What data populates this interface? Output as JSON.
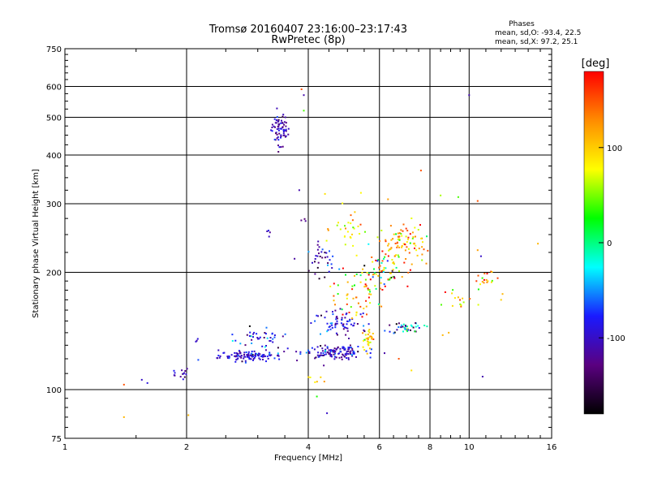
{
  "chart_data": {
    "type": "scatter",
    "title": "Tromsø 20160407 23:16:00–23:17:43",
    "subtitle": "RwPretec (8p)",
    "xlabel": "Frequency [MHz]",
    "ylabel": "Stationary phase Virtual Height [km]",
    "xscale": "log",
    "yscale": "log",
    "xlim": [
      1,
      16
    ],
    "ylim": [
      75,
      750
    ],
    "xticks": [
      {
        "v": 1,
        "label": "1"
      },
      {
        "v": 2,
        "label": "2"
      },
      {
        "v": 4,
        "label": "4"
      },
      {
        "v": 6,
        "label": "6"
      },
      {
        "v": 8,
        "label": "8"
      },
      {
        "v": 10,
        "label": "10"
      },
      {
        "v": 16,
        "label": "16"
      }
    ],
    "yticks": [
      {
        "v": 75,
        "label": "75"
      },
      {
        "v": 100,
        "label": "100"
      },
      {
        "v": 200,
        "label": "200"
      },
      {
        "v": 300,
        "label": "300"
      },
      {
        "v": 400,
        "label": "400"
      },
      {
        "v": 500,
        "label": "500"
      },
      {
        "v": 600,
        "label": "600"
      },
      {
        "v": 750,
        "label": "750"
      }
    ],
    "grid": true,
    "stats": {
      "heading": "Phases",
      "line_o": "mean, sd,O: -93.4, 22.5",
      "line_x": "mean, sd,X:  97.2, 25.1"
    },
    "colorbar": {
      "label": "[deg]",
      "range": [
        -180,
        180
      ],
      "ticks": [
        {
          "v": 100,
          "label": "100"
        },
        {
          "v": 0,
          "label": "0"
        },
        {
          "v": -100,
          "label": "-100"
        }
      ],
      "colors": [
        "#000000",
        "#5a0080",
        "#1a1aff",
        "#00ffff",
        "#00ff00",
        "#ffff00",
        "#ff8c00",
        "#ff0000"
      ]
    },
    "clusters": [
      {
        "fc": 3.4,
        "hc": 465,
        "fs": 0.025,
        "hs": 0.05,
        "n": 70,
        "pc": -110,
        "ps": 20
      },
      {
        "fc": 1.95,
        "hc": 110,
        "fs": 0.03,
        "hs": 0.015,
        "n": 14,
        "pc": -110,
        "ps": 20
      },
      {
        "fc": 2.1,
        "hc": 133,
        "fs": 0.01,
        "hs": 0.01,
        "n": 3,
        "pc": -100,
        "ps": 10
      },
      {
        "fc": 2.9,
        "hc": 122,
        "fs": 0.09,
        "hs": 0.015,
        "n": 110,
        "pc": -95,
        "ps": 20
      },
      {
        "fc": 3.0,
        "hc": 136,
        "fs": 0.08,
        "hs": 0.03,
        "n": 40,
        "pc": -90,
        "ps": 35
      },
      {
        "fc": 4.6,
        "hc": 125,
        "fs": 0.09,
        "hs": 0.02,
        "n": 130,
        "pc": -100,
        "ps": 25
      },
      {
        "fc": 4.8,
        "hc": 148,
        "fs": 0.08,
        "hs": 0.04,
        "n": 70,
        "pc": -95,
        "ps": 30
      },
      {
        "fc": 5.6,
        "hc": 135,
        "fs": 0.02,
        "hs": 0.03,
        "n": 30,
        "pc": 100,
        "ps": 30
      },
      {
        "fc": 7.0,
        "hc": 145,
        "fs": 0.05,
        "hs": 0.02,
        "n": 40,
        "pc": -80,
        "ps": 60
      },
      {
        "fc": 5.3,
        "hc": 170,
        "fs": 0.07,
        "hs": 0.06,
        "n": 50,
        "pc": 90,
        "ps": 50
      },
      {
        "fc": 6.8,
        "hc": 240,
        "fs": 0.07,
        "hs": 0.06,
        "n": 90,
        "pc": 110,
        "ps": 40
      },
      {
        "fc": 6.2,
        "hc": 200,
        "fs": 0.08,
        "hs": 0.06,
        "n": 70,
        "pc": 60,
        "ps": 90
      },
      {
        "fc": 4.3,
        "hc": 215,
        "fs": 0.04,
        "hs": 0.05,
        "n": 35,
        "pc": -100,
        "ps": 30
      },
      {
        "fc": 5.0,
        "hc": 255,
        "fs": 0.05,
        "hs": 0.06,
        "n": 30,
        "pc": 90,
        "ps": 40
      },
      {
        "fc": 11.0,
        "hc": 192,
        "fs": 0.03,
        "hs": 0.03,
        "n": 18,
        "pc": 90,
        "ps": 50
      },
      {
        "fc": 9.2,
        "hc": 170,
        "fs": 0.05,
        "hs": 0.04,
        "n": 15,
        "pc": 100,
        "ps": 40
      },
      {
        "fc": 3.2,
        "hc": 253,
        "fs": 0.01,
        "hs": 0.01,
        "n": 4,
        "pc": -110,
        "ps": 10
      },
      {
        "fc": 3.9,
        "hc": 272,
        "fs": 0.01,
        "hs": 0.01,
        "n": 3,
        "pc": -120,
        "ps": 10
      },
      {
        "fc": 4.1,
        "hc": 106,
        "fs": 0.04,
        "hs": 0.015,
        "n": 6,
        "pc": 100,
        "ps": 20
      }
    ],
    "singles": [
      {
        "f": 1.4,
        "h": 103,
        "p": 150
      },
      {
        "f": 1.55,
        "h": 106,
        "p": -100
      },
      {
        "f": 1.6,
        "h": 104,
        "p": -90
      },
      {
        "f": 1.4,
        "h": 85,
        "p": 110
      },
      {
        "f": 2.02,
        "h": 86,
        "p": 110
      },
      {
        "f": 3.85,
        "h": 590,
        "p": 150
      },
      {
        "f": 3.9,
        "h": 570,
        "p": -110
      },
      {
        "f": 3.9,
        "h": 520,
        "p": 40
      },
      {
        "f": 3.8,
        "h": 325,
        "p": -110
      },
      {
        "f": 10.0,
        "h": 570,
        "p": -110
      },
      {
        "f": 7.6,
        "h": 365,
        "p": 150
      },
      {
        "f": 9.4,
        "h": 312,
        "p": 40
      },
      {
        "f": 10.5,
        "h": 305,
        "p": 150
      },
      {
        "f": 14.8,
        "h": 237,
        "p": 110
      },
      {
        "f": 10.5,
        "h": 228,
        "p": 120
      },
      {
        "f": 10.7,
        "h": 220,
        "p": -100
      },
      {
        "f": 10.8,
        "h": 108,
        "p": -110
      },
      {
        "f": 4.45,
        "h": 87,
        "p": -100
      },
      {
        "f": 4.2,
        "h": 96,
        "p": 30
      },
      {
        "f": 6.7,
        "h": 120,
        "p": 150
      },
      {
        "f": 7.2,
        "h": 112,
        "p": 90
      },
      {
        "f": 8.6,
        "h": 138,
        "p": 110
      },
      {
        "f": 8.9,
        "h": 140,
        "p": 110
      },
      {
        "f": 4.4,
        "h": 318,
        "p": 90
      },
      {
        "f": 6.3,
        "h": 308,
        "p": 120
      },
      {
        "f": 5.4,
        "h": 320,
        "p": 80
      },
      {
        "f": 12.1,
        "h": 176,
        "p": 110
      },
      {
        "f": 12.0,
        "h": 170,
        "p": 100
      },
      {
        "f": 8.5,
        "h": 315,
        "p": 60
      }
    ]
  }
}
